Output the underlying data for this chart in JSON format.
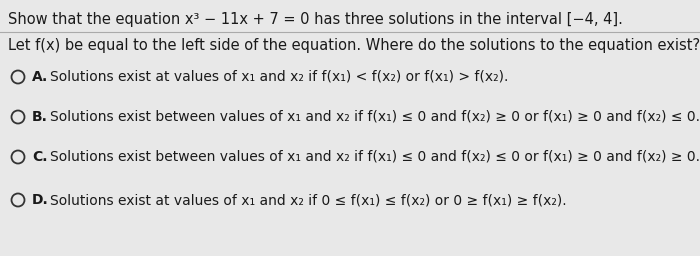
{
  "background_color": "#e8e8e8",
  "title_line": "Show that the equation x³ − 11x + 7 = 0 has three solutions in the interval [−4, 4].",
  "subtitle_line": "Let f(x) be equal to the left side of the equation. Where do the solutions to the equation exist?",
  "options": [
    {
      "label": "A.",
      "text": "Solutions exist at values of x₁ and x₂ if f(x₁) < f(x₂) or f(x₁) > f(x₂)."
    },
    {
      "label": "B.",
      "text": "Solutions exist between values of x₁ and x₂ if f(x₁) ≤ 0 and f(x₂) ≥ 0 or f(x₁) ≥ 0 and f(x₂) ≤ 0."
    },
    {
      "label": "C.",
      "text": "Solutions exist between values of x₁ and x₂ if f(x₁) ≤ 0 and f(x₂) ≤ 0 or f(x₁) ≥ 0 and f(x₂) ≥ 0."
    },
    {
      "label": "D.",
      "text": "Solutions exist at values of x₁ and x₂ if 0 ≤ f(x₁) ≤ f(x₂) or 0 ≥ f(x₁) ≥ f(x₂)."
    }
  ],
  "font_size_title": 10.5,
  "font_size_subtitle": 10.5,
  "font_size_options": 10.0,
  "text_color": "#1a1a1a",
  "circle_color": "#333333",
  "divider_color": "#aaaaaa"
}
